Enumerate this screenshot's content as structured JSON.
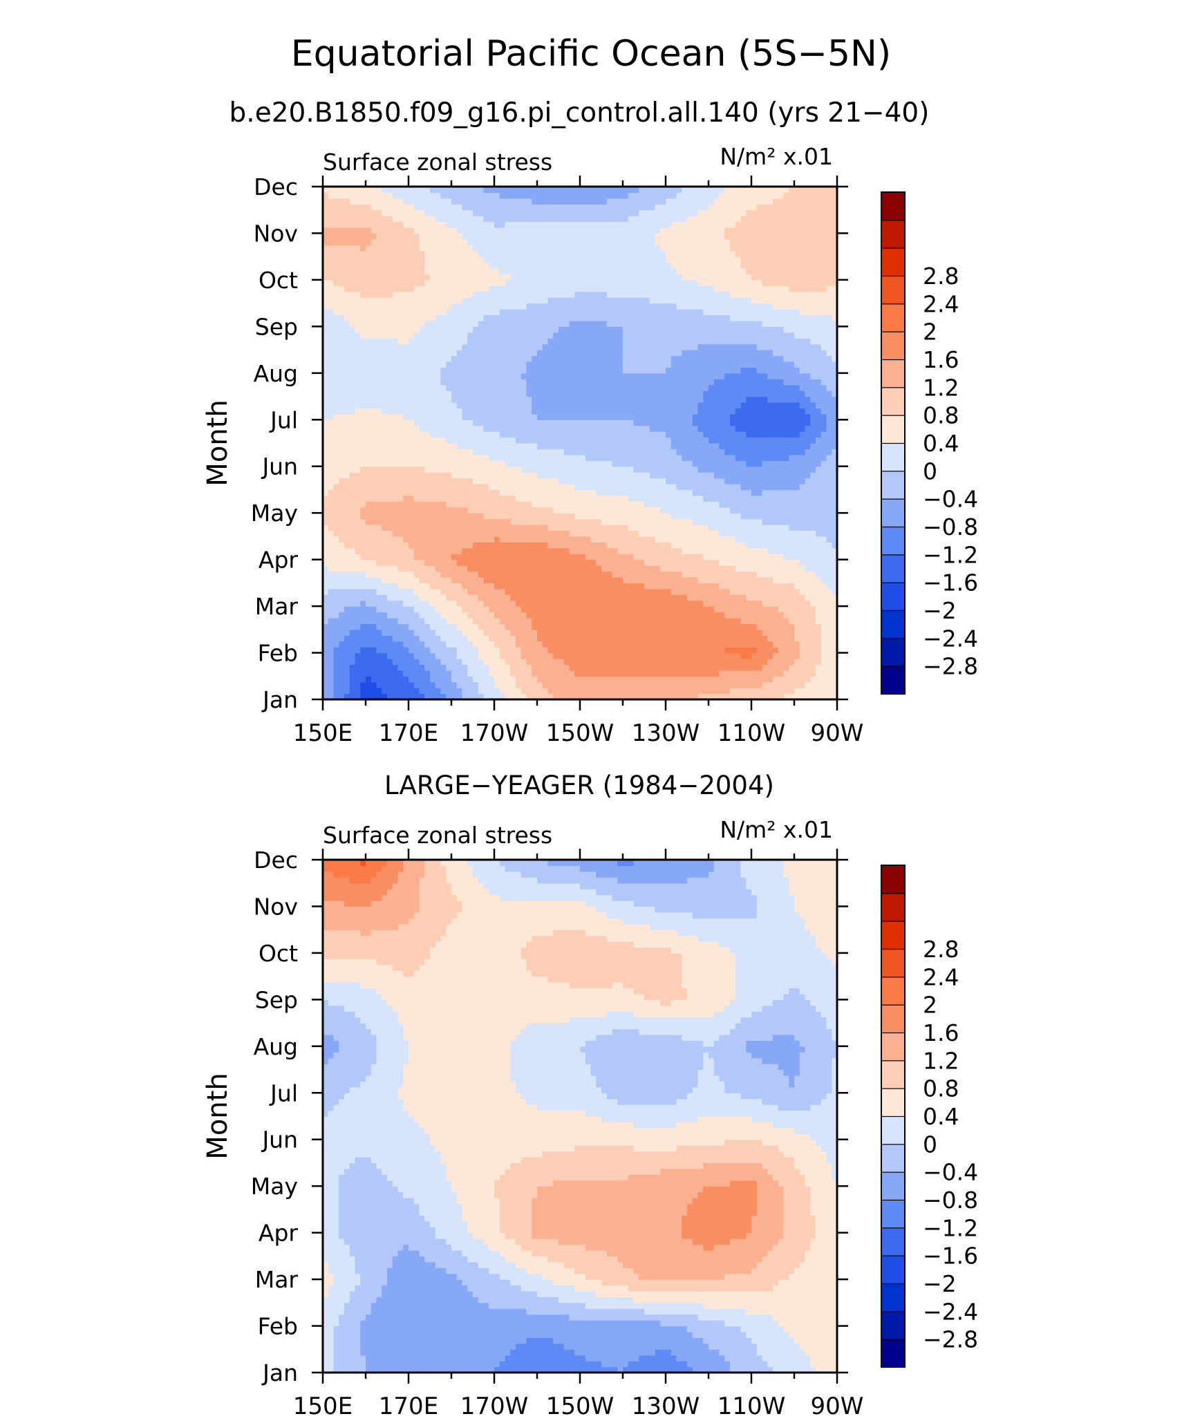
{
  "figure": {
    "title": "Equatorial Pacific Ocean (5S−5N)",
    "subtitle": "b.e20.B1850.f09_g16.pi_control.all.140 (yrs 21−40)"
  },
  "colorbar": {
    "levels": [
      -3.2,
      -2.8,
      -2.4,
      -2,
      -1.6,
      -1.2,
      -0.8,
      -0.4,
      0,
      0.4,
      0.8,
      1.2,
      1.6,
      2,
      2.4,
      2.8,
      3.2
    ],
    "tick_labels": [
      "−2.8",
      "−2.4",
      "−2",
      "−1.6",
      "−1.2",
      "−0.8",
      "−0.4",
      "0",
      "0.4",
      "0.8",
      "1.2",
      "1.6",
      "2",
      "2.4",
      "2.8"
    ],
    "colors": [
      "#00008f",
      "#0019a6",
      "#0033cc",
      "#1f4de6",
      "#3d6bf0",
      "#5e8af5",
      "#87a8f7",
      "#b3c8fa",
      "#d6e5fc",
      "#fde8d8",
      "#fcceb5",
      "#fbb08f",
      "#f98e63",
      "#fb7b46",
      "#ee5520",
      "#e03000",
      "#c01800",
      "#8b0000"
    ]
  },
  "chart_data": [
    {
      "type": "heatmap",
      "panel_title": "",
      "left_label": "Surface zonal stress",
      "right_label": "N/m² x.01",
      "xlabel": "",
      "ylabel": "Month",
      "x_tick_labels": [
        "150E",
        "170E",
        "170W",
        "150W",
        "130W",
        "110W",
        "90W"
      ],
      "x_values": [
        150,
        160,
        170,
        180,
        190,
        200,
        210,
        220,
        230,
        240,
        250,
        260,
        270
      ],
      "xlim": [
        150,
        270
      ],
      "y_tick_labels": [
        "Jan",
        "Feb",
        "Mar",
        "Apr",
        "May",
        "Jun",
        "Jul",
        "Aug",
        "Sep",
        "Oct",
        "Nov",
        "Dec"
      ],
      "ylim": [
        "Jan",
        "Dec"
      ],
      "z_units": "N/m² x.01",
      "z": [
        [
          -0.9,
          -2.2,
          -1.9,
          -1.1,
          -0.2,
          0.6,
          1.0,
          1.0,
          0.9,
          0.7,
          0.5,
          0.3,
          0.1
        ],
        [
          -1.0,
          -1.8,
          -1.3,
          -0.5,
          0.3,
          1.1,
          1.4,
          1.4,
          1.5,
          1.6,
          1.7,
          0.9,
          0.1
        ],
        [
          -0.6,
          -0.9,
          -0.4,
          0.3,
          0.9,
          1.4,
          1.6,
          1.6,
          1.5,
          1.2,
          0.9,
          0.7,
          0.1
        ],
        [
          0.1,
          0.4,
          0.7,
          1.2,
          1.6,
          1.6,
          1.3,
          0.9,
          0.6,
          0.4,
          0.2,
          0.0,
          -0.4
        ],
        [
          0.5,
          0.9,
          1.0,
          0.9,
          0.7,
          0.5,
          0.3,
          0.2,
          0.0,
          -0.2,
          -0.5,
          -0.6,
          -0.5
        ],
        [
          0.2,
          0.4,
          0.4,
          0.3,
          0.1,
          -0.1,
          -0.3,
          -0.4,
          -0.6,
          -0.9,
          -1.2,
          -1.0,
          -0.6
        ],
        [
          0.0,
          0.1,
          0.0,
          -0.3,
          -0.6,
          -0.8,
          -0.8,
          -0.8,
          -0.9,
          -1.4,
          -1.9,
          -2.0,
          -1.0
        ],
        [
          -0.4,
          -0.3,
          -0.2,
          -0.5,
          -0.6,
          -0.9,
          -0.9,
          -0.8,
          -0.8,
          -1.1,
          -1.3,
          -0.9,
          -0.5
        ],
        [
          -0.3,
          0.1,
          0.1,
          -0.2,
          -0.6,
          -0.7,
          -0.9,
          -0.8,
          -0.7,
          -0.6,
          -0.5,
          -0.3,
          -0.1
        ],
        [
          0.4,
          0.6,
          0.5,
          0.3,
          0.1,
          -0.1,
          -0.2,
          -0.2,
          -0.1,
          0.1,
          0.4,
          0.6,
          0.5
        ],
        [
          0.9,
          0.9,
          0.5,
          0.1,
          -0.3,
          -0.2,
          -0.2,
          -0.2,
          0.1,
          0.3,
          0.6,
          0.7,
          0.5
        ],
        [
          0.3,
          0.1,
          -0.3,
          -0.6,
          -0.9,
          -1.1,
          -1.2,
          -1.0,
          -0.6,
          -0.2,
          0.2,
          0.4,
          0.4
        ]
      ]
    },
    {
      "type": "heatmap",
      "panel_title": "LARGE−YEAGER (1984−2004)",
      "left_label": "Surface zonal stress",
      "right_label": "N/m² x.01",
      "xlabel": "",
      "ylabel": "Month",
      "x_tick_labels": [
        "150E",
        "170E",
        "170W",
        "150W",
        "130W",
        "110W",
        "90W"
      ],
      "x_values": [
        150,
        160,
        170,
        180,
        190,
        200,
        210,
        220,
        230,
        240,
        250,
        260,
        270
      ],
      "xlim": [
        150,
        270
      ],
      "y_tick_labels": [
        "Jan",
        "Feb",
        "Mar",
        "Apr",
        "May",
        "Jun",
        "Jul",
        "Aug",
        "Sep",
        "Oct",
        "Nov",
        "Dec"
      ],
      "ylim": [
        "Jan",
        "Dec"
      ],
      "z_units": "N/m² x.01",
      "z": [
        [
          -0.3,
          -0.8,
          -0.9,
          -0.9,
          -1.2,
          -1.6,
          -1.3,
          -1.2,
          -1.5,
          -1.1,
          -0.6,
          -0.2,
          0.2
        ],
        [
          -0.2,
          -0.9,
          -1.2,
          -1.0,
          -1.0,
          -1.1,
          -1.0,
          -1.0,
          -0.9,
          -0.6,
          -0.3,
          0.1,
          0.3
        ],
        [
          0.2,
          -0.5,
          -1.1,
          -0.9,
          -0.5,
          -0.1,
          0.3,
          0.7,
          0.9,
          0.8,
          0.7,
          0.3,
          0.1
        ],
        [
          -0.3,
          -0.6,
          -0.7,
          -0.2,
          0.3,
          0.9,
          1.0,
          1.0,
          1.1,
          1.4,
          1.2,
          0.7,
          0.1
        ],
        [
          -0.3,
          -0.6,
          -0.3,
          0.0,
          0.4,
          0.8,
          0.9,
          0.9,
          1.1,
          1.2,
          1.3,
          0.6,
          0.0
        ],
        [
          -0.3,
          -0.3,
          -0.1,
          0.1,
          0.2,
          0.2,
          0.3,
          0.3,
          0.2,
          0.3,
          0.4,
          0.2,
          -0.2
        ],
        [
          -0.5,
          -0.3,
          0.1,
          0.2,
          0.1,
          -0.1,
          -0.2,
          -0.6,
          -0.6,
          -0.3,
          -0.5,
          -0.8,
          -0.3
        ],
        [
          -1.0,
          -0.6,
          0.0,
          0.2,
          0.1,
          -0.2,
          -0.4,
          -0.8,
          -0.7,
          -0.4,
          -0.9,
          -0.9,
          -0.4
        ],
        [
          -0.4,
          -0.2,
          0.2,
          0.2,
          0.1,
          0.2,
          0.3,
          0.3,
          0.5,
          0.3,
          -0.2,
          -0.5,
          -0.2
        ],
        [
          0.5,
          0.5,
          0.6,
          0.2,
          0.1,
          0.6,
          0.7,
          0.6,
          0.5,
          0.2,
          -0.1,
          -0.2,
          0.1
        ],
        [
          1.1,
          1.2,
          0.9,
          0.5,
          0.1,
          0.1,
          0.1,
          -0.3,
          -0.5,
          -0.6,
          -0.5,
          0.0,
          0.3
        ],
        [
          1.7,
          2.1,
          1.1,
          0.2,
          -0.4,
          -0.8,
          -1.0,
          -1.3,
          -1.1,
          -0.9,
          -0.2,
          0.1,
          0.2
        ]
      ]
    }
  ]
}
